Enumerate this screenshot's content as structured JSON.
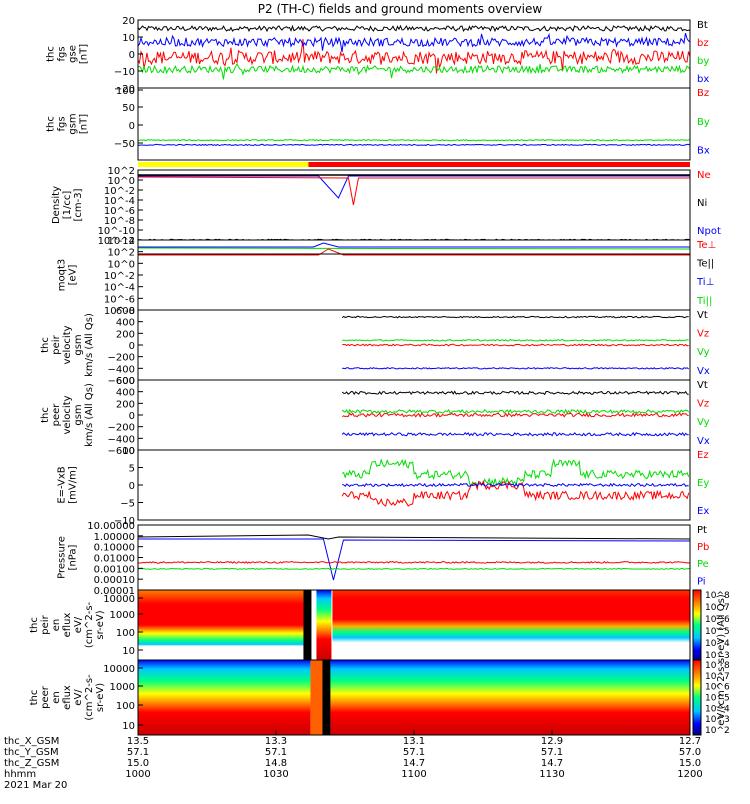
{
  "title": "P2 (TH-C) fields and ground moments overview",
  "colors": {
    "black": "#000000",
    "red": "#ff0000",
    "green": "#00dd00",
    "blue": "#0000ff",
    "yellow": "#ffff00"
  },
  "chart_data": [
    {
      "type": "line",
      "panel": "fgs-gse",
      "ylabel": "thc fgs gse [nT]",
      "ylim": [
        -20,
        20
      ],
      "yticks": [
        "20",
        "10",
        "0",
        "−10",
        "−20"
      ],
      "series": [
        {
          "name": "Bt",
          "color": "black",
          "level": 16
        },
        {
          "name": "bz",
          "color": "red",
          "level": -4
        },
        {
          "name": "by",
          "color": "green",
          "level": -10
        },
        {
          "name": "bx",
          "color": "blue",
          "level": 7
        }
      ]
    },
    {
      "type": "line",
      "panel": "fgs-gsm",
      "ylabel": "thc fgs gsm [nT]",
      "ylim": [
        -100,
        100
      ],
      "yticks": [
        "100",
        "50",
        "0",
        "−50"
      ],
      "series": [
        {
          "name": "Bz",
          "color": "red"
        },
        {
          "name": "By",
          "color": "green",
          "level": -45
        },
        {
          "name": "Bx",
          "color": "blue",
          "level": -57
        }
      ]
    },
    {
      "type": "line",
      "panel": "density",
      "ylabel": "Density [1/cc] [cm-3]",
      "ylim": "log",
      "yticks": [
        "10^2",
        "10^0",
        "10^-2",
        "10^-4",
        "10^-6",
        "10^-8",
        "10^-10",
        "10^-12"
      ],
      "series": [
        {
          "name": "Ne",
          "color": "red"
        },
        {
          "name": "Ni",
          "color": "black"
        },
        {
          "name": "Npot",
          "color": "blue"
        }
      ]
    },
    {
      "type": "line",
      "panel": "temperature",
      "ylabel": "moqt3 [eV]",
      "ylim": "log",
      "yticks": [
        "10^4",
        "10^2",
        "10^0",
        "10^-2",
        "10^-4",
        "10^-6",
        "10^-8"
      ],
      "series": [
        {
          "name": "Te⊥",
          "color": "red"
        },
        {
          "name": "Te||",
          "color": "black"
        },
        {
          "name": "Ti⊥",
          "color": "blue"
        },
        {
          "name": "Ti||",
          "color": "green"
        }
      ]
    },
    {
      "type": "line",
      "panel": "peir-velocity",
      "ylabel": "thc peir velocity gsm km/s (All Qs)",
      "ylim": [
        -600,
        600
      ],
      "yticks": [
        "600",
        "400",
        "200",
        "0",
        "−200",
        "−400",
        "−600"
      ],
      "series": [
        {
          "name": "Vt",
          "color": "black",
          "level": 480
        },
        {
          "name": "Vz",
          "color": "red",
          "level": 0
        },
        {
          "name": "Vy",
          "color": "green",
          "level": 80
        },
        {
          "name": "Vx",
          "color": "blue",
          "level": -400
        }
      ]
    },
    {
      "type": "line",
      "panel": "peer-velocity",
      "ylabel": "thc peer velocity gsm km/s (All Qs)",
      "ylim": [
        -600,
        600
      ],
      "yticks": [
        "600",
        "400",
        "200",
        "0",
        "−200",
        "−400",
        "−600"
      ],
      "series": [
        {
          "name": "Vt",
          "color": "black",
          "level": 380
        },
        {
          "name": "Vz",
          "color": "red",
          "level": 0
        },
        {
          "name": "Vy",
          "color": "green",
          "level": 60
        },
        {
          "name": "Vx",
          "color": "blue",
          "level": -330
        }
      ]
    },
    {
      "type": "line",
      "panel": "efield",
      "ylabel": "E=-VxB [mV/m]",
      "ylim": [
        -10,
        10
      ],
      "yticks": [
        "10",
        "5",
        "0",
        "−5",
        "−10"
      ],
      "series": [
        {
          "name": "Ez",
          "color": "red",
          "level": -3
        },
        {
          "name": "Ey",
          "color": "green",
          "level": 3
        },
        {
          "name": "Ex",
          "color": "blue",
          "level": 0
        }
      ]
    },
    {
      "type": "line",
      "panel": "pressure",
      "ylabel": "Pressure [nPa]",
      "ylim": "log",
      "yticks": [
        "10.00000",
        "1.00000",
        "0.10000",
        "0.01000",
        "0.00100",
        "0.00010",
        "0.00001"
      ],
      "series": [
        {
          "name": "Pt",
          "color": "black"
        },
        {
          "name": "Pb",
          "color": "red"
        },
        {
          "name": "Pe",
          "color": "green"
        },
        {
          "name": "Pi",
          "color": "blue"
        }
      ]
    },
    {
      "type": "heatmap",
      "panel": "peir-eflux",
      "ylabel": "thc peir en eflux eV/(cm^2-s-sr-eV)",
      "yticks": [
        "10000",
        "1000",
        "100",
        "10"
      ],
      "colorbar": {
        "label": "eV/(cm^2-s-sr-eV) (All Qs)",
        "ticks": [
          "10^8",
          "10^7",
          "10^6",
          "10^5",
          "10^4",
          "10^3"
        ]
      }
    },
    {
      "type": "heatmap",
      "panel": "peer-eflux",
      "ylabel": "thc peer en eflux eV/(cm^2-s-sr-eV)",
      "yticks": [
        "10000",
        "1000",
        "100",
        "10"
      ],
      "colorbar": {
        "label": "eV/(cm^2-s-sr-eV) (All Qs)",
        "ticks": [
          "10^8",
          "10^7",
          "10^6",
          "10^5",
          "10^4",
          "10^3",
          "10^2"
        ]
      }
    }
  ],
  "x_axis": {
    "row_labels": [
      "thc_X_GSM",
      "thc_Y_GSM",
      "thc_Z_GSM",
      "hhmm",
      "2021 Mar 20"
    ],
    "ticks": [
      {
        "x": "13.5",
        "y": "57.1",
        "z": "15.0",
        "t": "1000"
      },
      {
        "x": "13.3",
        "y": "57.1",
        "z": "14.8",
        "t": "1030"
      },
      {
        "x": "13.1",
        "y": "57.1",
        "z": "14.7",
        "t": "1100"
      },
      {
        "x": "12.9",
        "y": "57.1",
        "z": "14.7",
        "t": "1130"
      },
      {
        "x": "12.7",
        "y": "57.0",
        "z": "15.0",
        "t": "1200"
      }
    ]
  }
}
